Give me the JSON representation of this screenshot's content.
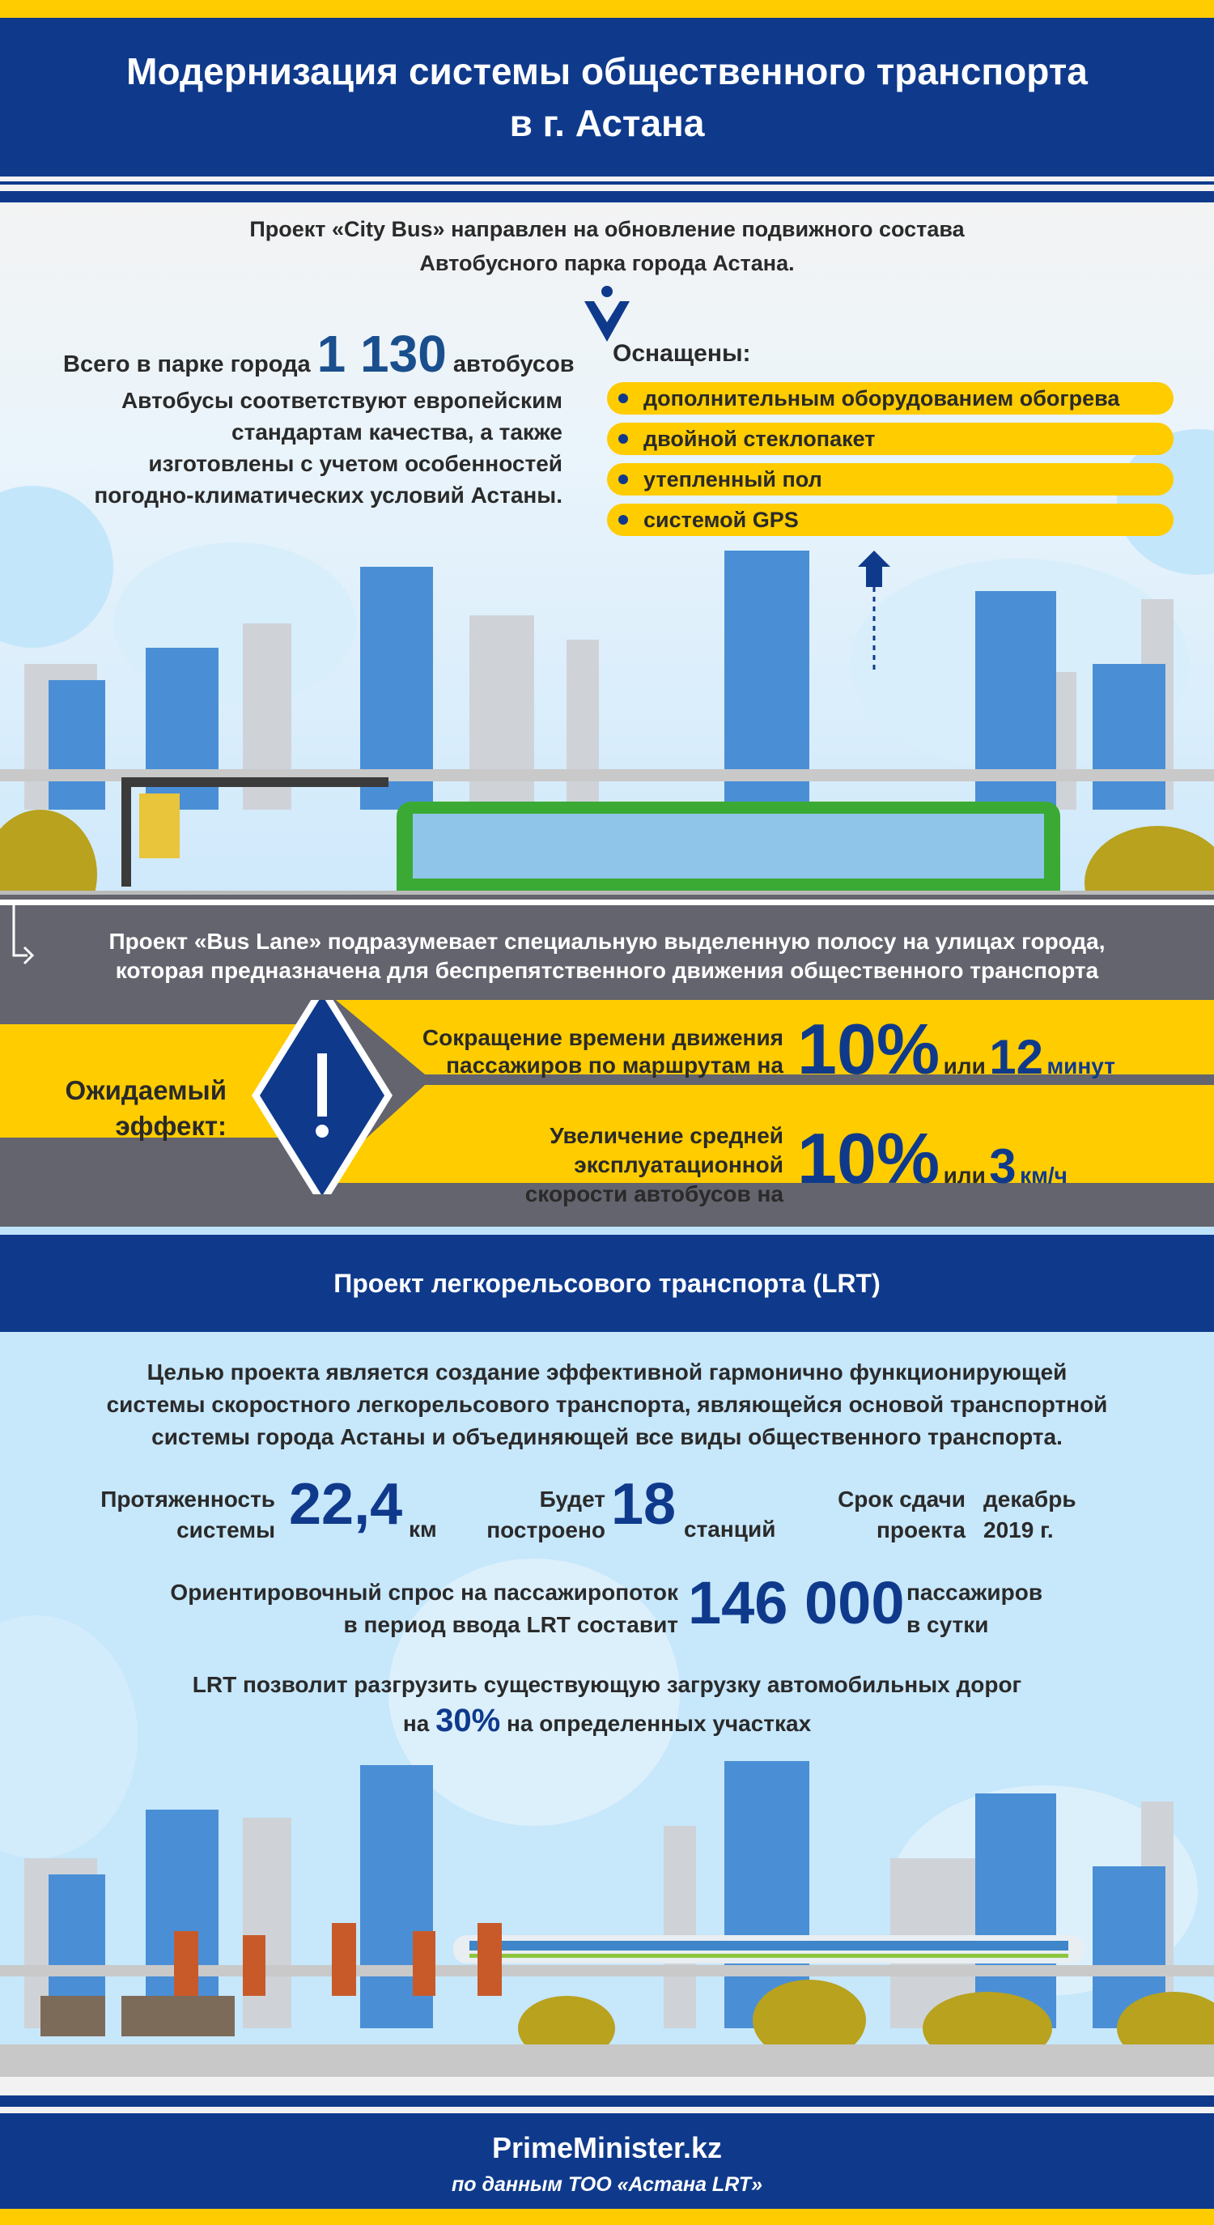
{
  "header": {
    "title_line1": "Модернизация системы общественного транспорта",
    "title_line2": "в г. Астана"
  },
  "city_bus": {
    "intro_line1": "Проект «City Bus» направлен на обновление подвижного состава",
    "intro_line2": "Автобусного парка города Астана.",
    "total_prefix": "Всего в парке города",
    "total_value": "1 130",
    "total_suffix": "автобусов",
    "standards": [
      "Автобусы соответствуют европейским",
      "стандартам качества, а также",
      "изготовлены с учетом особенностей",
      "погодно-климатических условий Астаны."
    ],
    "equipped_label": "Оснащены:",
    "equipped_items": [
      "дополнительным оборудованием обогрева",
      "двойной стеклопакет",
      "утепленный пол",
      "системой GPS"
    ]
  },
  "bus_lane": {
    "intro_line1": "Проект «Bus Lane» подразумевает специальную выделенную полосу на улицах города,",
    "intro_line2": "которая предназначена для беспрепятственного движения общественного транспорта",
    "effect_label_line1": "Ожидаемый",
    "effect_label_line2": "эффект:",
    "effects": [
      {
        "text": [
          "Сокращение времени движения",
          "пассажиров по маршрутам на"
        ],
        "percent": "10%",
        "or": "или",
        "value": "12",
        "unit": "минут"
      },
      {
        "text": [
          "Увеличение средней",
          "эксплуатационной",
          "скорости автобусов на"
        ],
        "percent": "10%",
        "or": "или",
        "value": "3",
        "unit": "км/ч"
      }
    ]
  },
  "lrt": {
    "title": "Проект легкорельсового транспорта (LRT)",
    "goal": [
      "Целью проекта является создание эффективной гармонично функционирующей",
      "системы скоростного легкорельсового транспорта, являющейся основой транспортной",
      "системы города Астаны и объединяющей все виды общественного транспорта."
    ],
    "length_label": [
      "Протяженность",
      "системы"
    ],
    "length_value": "22,4",
    "length_unit": "км",
    "stations_label": [
      "Будет",
      "построено"
    ],
    "stations_value": "18",
    "stations_unit": "станций",
    "deadline_label": [
      "Срок сдачи",
      "проекта"
    ],
    "deadline_value": [
      "декабрь",
      "2019 г."
    ],
    "demand_label": [
      "Ориентировочный спрос на пассажиропоток",
      "в период ввода LRT составит"
    ],
    "demand_value": "146 000",
    "demand_unit": [
      "пассажиров",
      "в сутки"
    ],
    "relief_line1": "LRT позволит разгрузить существующую загрузку автомобильных дорог",
    "relief_pre": "на",
    "relief_value": "30%",
    "relief_post": "на определенных участках"
  },
  "footer": {
    "site": "PrimeMinister.kz",
    "source": "по данным ТОО «Астана LRT»"
  },
  "colors": {
    "blue": "#0f3a8c",
    "yellow": "#ffcc00",
    "gray": "#64646e",
    "bus_green": "#3aaa35"
  }
}
